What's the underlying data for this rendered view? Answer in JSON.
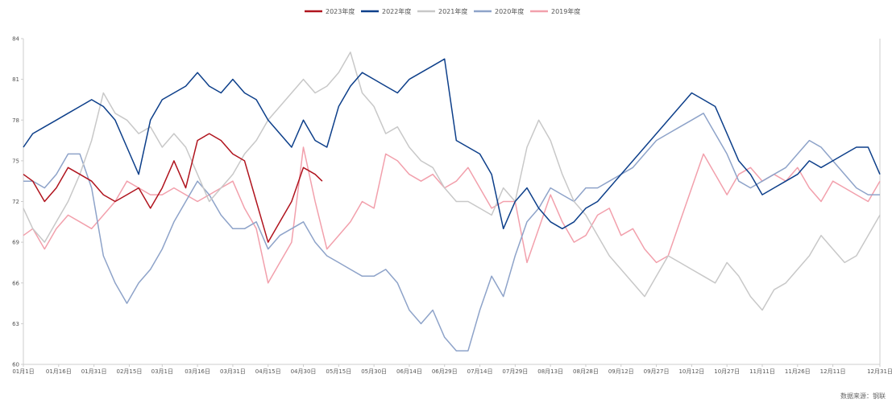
{
  "source_note": "数据来源：钢联",
  "chart_data": {
    "type": "line",
    "ylim": [
      60,
      84
    ],
    "yticks": [
      60,
      63,
      66,
      69,
      72,
      75,
      78,
      81,
      84
    ],
    "x_tick_labels": [
      "01月1日",
      "01月16日",
      "01月31日",
      "02月15日",
      "03月1日",
      "03月16日",
      "03月31日",
      "04月15日",
      "04月30日",
      "05月15日",
      "05月30日",
      "06月14日",
      "06月29日",
      "07月14日",
      "07月29日",
      "08月13日",
      "08月28日",
      "09月12日",
      "09月27日",
      "10月12日",
      "10月27日",
      "11月11日",
      "11月26日",
      "12月11日",
      "12月31日"
    ],
    "x_tick_days": [
      1,
      16,
      31,
      46,
      60,
      75,
      90,
      105,
      120,
      135,
      150,
      165,
      180,
      195,
      210,
      225,
      240,
      255,
      270,
      285,
      300,
      315,
      330,
      345,
      365
    ],
    "grid": false,
    "legend_position": "top-center",
    "series": [
      {
        "name": "2023年度",
        "color": "#b0141e",
        "x": [
          1,
          5,
          10,
          15,
          20,
          25,
          30,
          35,
          40,
          45,
          50,
          55,
          60,
          65,
          70,
          75,
          80,
          85,
          90,
          95,
          100,
          105,
          110,
          115,
          120,
          125,
          128
        ],
        "y": [
          74.0,
          73.5,
          72.0,
          73.0,
          74.5,
          74.0,
          73.5,
          72.5,
          72.0,
          72.5,
          73.0,
          71.5,
          73.0,
          75.0,
          73.0,
          76.5,
          77.0,
          76.5,
          75.5,
          75.0,
          72.0,
          69.0,
          70.5,
          72.0,
          74.5,
          74.0,
          73.5
        ]
      },
      {
        "name": "2022年度",
        "color": "#0d3f8a",
        "x": [
          1,
          5,
          10,
          15,
          20,
          25,
          30,
          35,
          40,
          45,
          50,
          55,
          60,
          65,
          70,
          75,
          80,
          85,
          90,
          95,
          100,
          105,
          110,
          115,
          120,
          125,
          130,
          135,
          140,
          145,
          150,
          155,
          160,
          165,
          170,
          175,
          180,
          185,
          190,
          195,
          200,
          205,
          210,
          215,
          220,
          225,
          230,
          235,
          240,
          245,
          250,
          255,
          260,
          265,
          270,
          275,
          280,
          285,
          290,
          295,
          300,
          305,
          310,
          315,
          320,
          325,
          330,
          335,
          340,
          345,
          350,
          355,
          360,
          365
        ],
        "y": [
          76.0,
          77.0,
          77.5,
          78.0,
          78.5,
          79.0,
          79.5,
          79.0,
          78.0,
          76.0,
          74.0,
          78.0,
          79.5,
          80.0,
          80.5,
          81.5,
          80.5,
          80.0,
          81.0,
          80.0,
          79.5,
          78.0,
          77.0,
          76.0,
          78.0,
          76.5,
          76.0,
          79.0,
          80.5,
          81.5,
          81.0,
          80.5,
          80.0,
          81.0,
          81.5,
          82.0,
          82.5,
          76.5,
          76.0,
          75.5,
          74.0,
          70.0,
          72.0,
          73.0,
          71.5,
          70.5,
          70.0,
          70.5,
          71.5,
          72.0,
          73.0,
          74.0,
          75.0,
          76.0,
          77.0,
          78.0,
          79.0,
          80.0,
          79.5,
          79.0,
          77.0,
          75.0,
          74.0,
          72.5,
          73.0,
          73.5,
          74.0,
          75.0,
          74.5,
          75.0,
          75.5,
          76.0,
          76.0,
          74.0
        ]
      },
      {
        "name": "2021年度",
        "color": "#c8c8c8",
        "x": [
          1,
          5,
          10,
          15,
          20,
          25,
          30,
          35,
          40,
          45,
          50,
          55,
          60,
          65,
          70,
          75,
          80,
          85,
          90,
          95,
          100,
          105,
          110,
          115,
          120,
          125,
          130,
          135,
          140,
          145,
          150,
          155,
          160,
          165,
          170,
          175,
          180,
          185,
          190,
          195,
          200,
          205,
          210,
          215,
          220,
          225,
          230,
          235,
          240,
          245,
          250,
          255,
          260,
          265,
          270,
          275,
          280,
          285,
          290,
          295,
          300,
          305,
          310,
          315,
          320,
          325,
          330,
          335,
          340,
          345,
          350,
          355,
          360,
          365
        ],
        "y": [
          71.5,
          70.0,
          69.0,
          70.5,
          72.0,
          74.0,
          76.5,
          80.0,
          78.5,
          78.0,
          77.0,
          77.5,
          76.0,
          77.0,
          76.0,
          74.0,
          72.0,
          73.0,
          74.0,
          75.5,
          76.5,
          78.0,
          79.0,
          80.0,
          81.0,
          80.0,
          80.5,
          81.5,
          83.0,
          80.0,
          79.0,
          77.0,
          77.5,
          76.0,
          75.0,
          74.5,
          73.0,
          72.0,
          72.0,
          71.5,
          71.0,
          73.0,
          72.0,
          76.0,
          78.0,
          76.5,
          74.0,
          72.0,
          71.0,
          69.5,
          68.0,
          67.0,
          66.0,
          65.0,
          66.5,
          68.0,
          67.5,
          67.0,
          66.5,
          66.0,
          67.5,
          66.5,
          65.0,
          64.0,
          65.5,
          66.0,
          67.0,
          68.0,
          69.5,
          68.5,
          67.5,
          68.0,
          69.5,
          71.0
        ]
      },
      {
        "name": "2020年度",
        "color": "#8ea3c9",
        "x": [
          1,
          5,
          10,
          15,
          20,
          25,
          30,
          35,
          40,
          45,
          50,
          55,
          60,
          65,
          70,
          75,
          80,
          85,
          90,
          95,
          100,
          105,
          110,
          115,
          120,
          125,
          130,
          135,
          140,
          145,
          150,
          155,
          160,
          165,
          170,
          175,
          180,
          185,
          190,
          195,
          200,
          205,
          210,
          215,
          220,
          225,
          230,
          235,
          240,
          245,
          250,
          255,
          260,
          265,
          270,
          275,
          280,
          285,
          290,
          295,
          300,
          305,
          310,
          315,
          320,
          325,
          330,
          335,
          340,
          345,
          350,
          355,
          360,
          365
        ],
        "y": [
          73.5,
          73.5,
          73.0,
          74.0,
          75.5,
          75.5,
          73.0,
          68.0,
          66.0,
          64.5,
          66.0,
          67.0,
          68.5,
          70.5,
          72.0,
          73.5,
          72.5,
          71.0,
          70.0,
          70.0,
          70.5,
          68.5,
          69.5,
          70.0,
          70.5,
          69.0,
          68.0,
          67.5,
          67.0,
          66.5,
          66.5,
          67.0,
          66.0,
          64.0,
          63.0,
          64.0,
          62.0,
          61.0,
          61.0,
          64.0,
          66.5,
          65.0,
          68.0,
          70.5,
          71.5,
          73.0,
          72.5,
          72.0,
          73.0,
          73.0,
          73.5,
          74.0,
          74.5,
          75.5,
          76.5,
          77.0,
          77.5,
          78.0,
          78.5,
          77.0,
          75.5,
          73.5,
          73.0,
          73.5,
          74.0,
          74.5,
          75.5,
          76.5,
          76.0,
          75.0,
          74.0,
          73.0,
          72.5,
          72.5
        ]
      },
      {
        "name": "2019年度",
        "color": "#f2a0ac",
        "x": [
          1,
          5,
          10,
          15,
          20,
          25,
          30,
          35,
          40,
          45,
          50,
          55,
          60,
          65,
          70,
          75,
          80,
          85,
          90,
          95,
          100,
          105,
          110,
          115,
          120,
          125,
          130,
          135,
          140,
          145,
          150,
          155,
          160,
          165,
          170,
          175,
          180,
          185,
          190,
          195,
          200,
          205,
          210,
          215,
          220,
          225,
          230,
          235,
          240,
          245,
          250,
          255,
          260,
          265,
          270,
          275,
          280,
          285,
          290,
          295,
          300,
          305,
          310,
          315,
          320,
          325,
          330,
          335,
          340,
          345,
          350,
          355,
          360,
          365
        ],
        "y": [
          69.5,
          70.0,
          68.5,
          70.0,
          71.0,
          70.5,
          70.0,
          71.0,
          72.0,
          73.5,
          73.0,
          72.5,
          72.5,
          73.0,
          72.5,
          72.0,
          72.5,
          73.0,
          73.5,
          71.5,
          70.0,
          66.0,
          67.5,
          69.0,
          76.0,
          72.0,
          68.5,
          69.5,
          70.5,
          72.0,
          71.5,
          75.5,
          75.0,
          74.0,
          73.5,
          74.0,
          73.0,
          73.5,
          74.5,
          73.0,
          71.5,
          72.0,
          72.0,
          67.5,
          70.0,
          72.5,
          70.5,
          69.0,
          69.5,
          71.0,
          71.5,
          69.5,
          70.0,
          68.5,
          67.5,
          68.0,
          70.5,
          73.0,
          75.5,
          74.0,
          72.5,
          74.0,
          74.5,
          73.5,
          74.0,
          73.5,
          74.5,
          73.0,
          72.0,
          73.5,
          73.0,
          72.5,
          72.0,
          73.5
        ]
      }
    ]
  }
}
